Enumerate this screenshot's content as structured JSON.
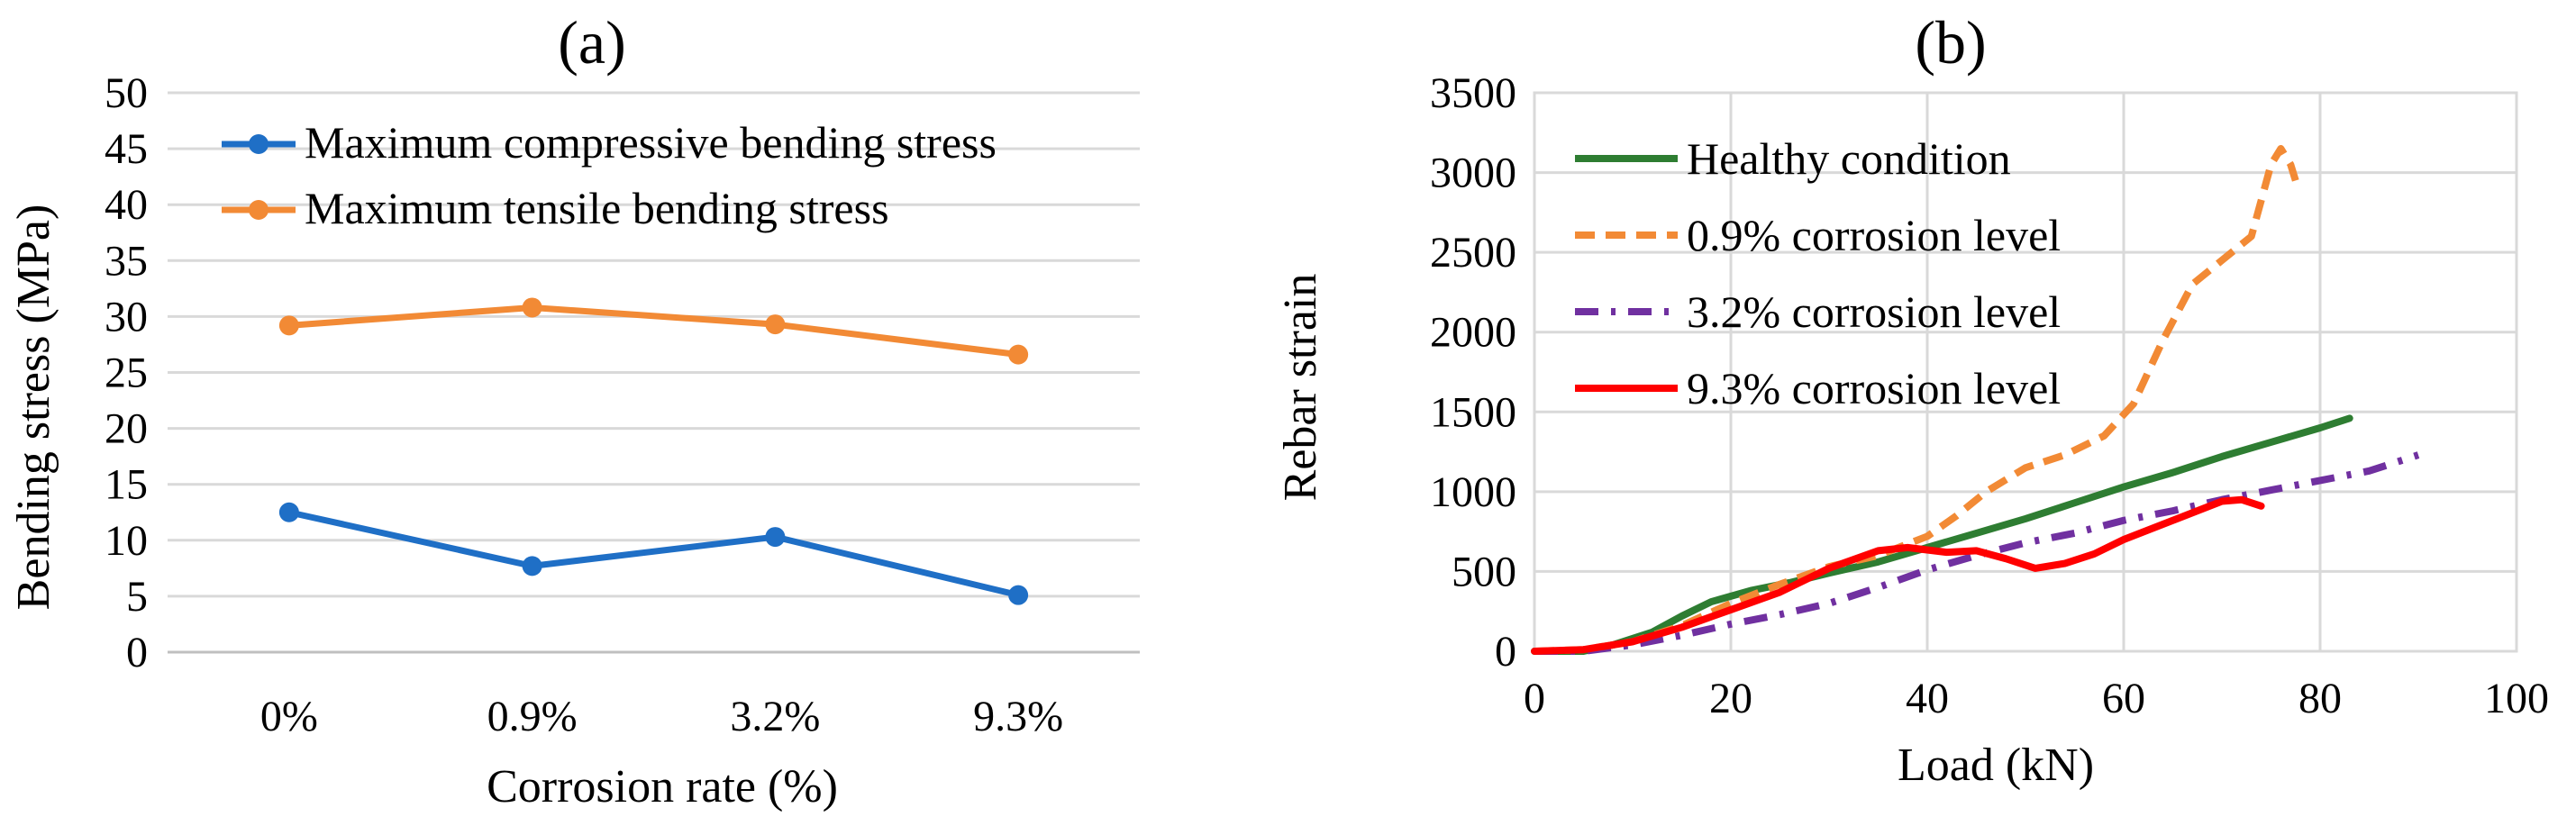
{
  "chart_data": [
    {
      "panel_label": "(a)",
      "type": "line",
      "categories": [
        "0%",
        "0.9%",
        "3.2%",
        "9.3%"
      ],
      "series": [
        {
          "name": "Maximum compressive bending stress",
          "color": "#1f6fc6",
          "values": [
            12.5,
            7.7,
            10.3,
            5.1
          ]
        },
        {
          "name": "Maximum tensile bending stress",
          "color": "#f28a35",
          "values": [
            29.2,
            30.8,
            29.3,
            26.6
          ]
        }
      ],
      "xlabel": "Corrosion rate (%)",
      "ylabel": "Bending stress (MPa)",
      "ylim": [
        0,
        50
      ],
      "yticks": [
        "0",
        "5",
        "10",
        "15",
        "20",
        "25",
        "30",
        "35",
        "40",
        "45",
        "50"
      ],
      "grid": true,
      "legend": "top-left"
    },
    {
      "panel_label": "(b)",
      "type": "line",
      "series": [
        {
          "name": "Healthy condition",
          "color": "#2e7d32",
          "dash": "solid",
          "points": [
            [
              0,
              0
            ],
            [
              5,
              0
            ],
            [
              8,
              40
            ],
            [
              12,
              120
            ],
            [
              15,
              220
            ],
            [
              18,
              310
            ],
            [
              22,
              380
            ],
            [
              26,
              430
            ],
            [
              30,
              490
            ],
            [
              35,
              560
            ],
            [
              40,
              650
            ],
            [
              45,
              740
            ],
            [
              50,
              830
            ],
            [
              55,
              930
            ],
            [
              60,
              1030
            ],
            [
              65,
              1120
            ],
            [
              70,
              1220
            ],
            [
              75,
              1310
            ],
            [
              80,
              1400
            ],
            [
              83,
              1460
            ]
          ]
        },
        {
          "name": "0.9% corrosion level",
          "color": "#f28a35",
          "dash": "dash",
          "points": [
            [
              0,
              0
            ],
            [
              5,
              10
            ],
            [
              10,
              60
            ],
            [
              15,
              160
            ],
            [
              20,
              300
            ],
            [
              25,
              420
            ],
            [
              30,
              530
            ],
            [
              35,
              600
            ],
            [
              40,
              720
            ],
            [
              43,
              850
            ],
            [
              46,
              1000
            ],
            [
              50,
              1150
            ],
            [
              54,
              1230
            ],
            [
              58,
              1350
            ],
            [
              61,
              1550
            ],
            [
              64,
              1950
            ],
            [
              67,
              2300
            ],
            [
              70,
              2450
            ],
            [
              73,
              2600
            ],
            [
              75,
              3050
            ],
            [
              76,
              3150
            ],
            [
              77,
              3050
            ],
            [
              77.5,
              2950
            ]
          ]
        },
        {
          "name": "3.2% corrosion level",
          "color": "#7030a0",
          "dash": "dashdot",
          "points": [
            [
              0,
              0
            ],
            [
              5,
              0
            ],
            [
              10,
              40
            ],
            [
              15,
              100
            ],
            [
              20,
              170
            ],
            [
              25,
              230
            ],
            [
              30,
              300
            ],
            [
              35,
              400
            ],
            [
              40,
              510
            ],
            [
              45,
              600
            ],
            [
              50,
              680
            ],
            [
              55,
              740
            ],
            [
              60,
              820
            ],
            [
              65,
              880
            ],
            [
              70,
              950
            ],
            [
              75,
              1010
            ],
            [
              80,
              1070
            ],
            [
              85,
              1130
            ],
            [
              90,
              1230
            ]
          ]
        },
        {
          "name": "9.3% corrosion level",
          "color": "#ff0000",
          "dash": "solid",
          "points": [
            [
              0,
              0
            ],
            [
              5,
              10
            ],
            [
              10,
              60
            ],
            [
              15,
              150
            ],
            [
              20,
              260
            ],
            [
              25,
              370
            ],
            [
              30,
              520
            ],
            [
              35,
              630
            ],
            [
              38,
              650
            ],
            [
              42,
              620
            ],
            [
              45,
              630
            ],
            [
              48,
              580
            ],
            [
              51,
              520
            ],
            [
              54,
              550
            ],
            [
              57,
              610
            ],
            [
              60,
              700
            ],
            [
              65,
              820
            ],
            [
              70,
              940
            ],
            [
              72,
              950
            ],
            [
              74,
              910
            ]
          ]
        }
      ],
      "xlabel": "Load (kN)",
      "ylabel": "Rebar strain",
      "xlim": [
        0,
        100
      ],
      "ylim": [
        0,
        3500
      ],
      "xticks": [
        "0",
        "20",
        "40",
        "60",
        "80",
        "100"
      ],
      "yticks": [
        "0",
        "500",
        "1000",
        "1500",
        "2000",
        "2500",
        "3000",
        "3500"
      ],
      "grid": true,
      "legend": "top-left"
    }
  ]
}
